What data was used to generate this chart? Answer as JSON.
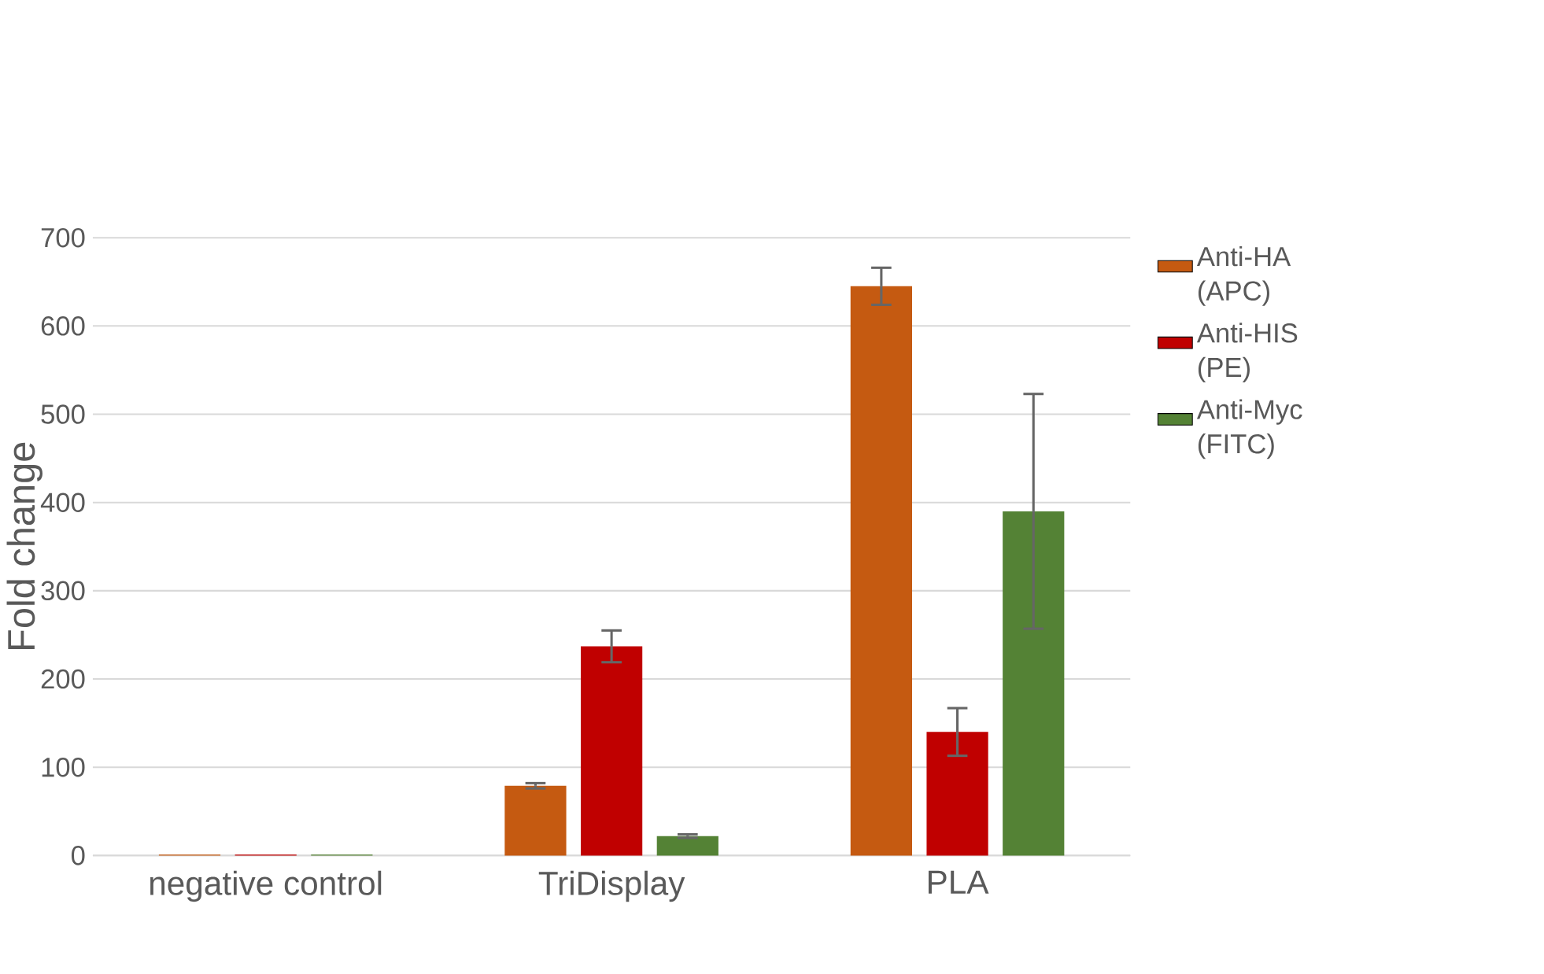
{
  "chart_data": {
    "type": "bar",
    "ylabel": "Fold change",
    "categories": [
      "negative control",
      "TriDisplay",
      "PLA"
    ],
    "series": [
      {
        "name": "Anti-HA (APC)",
        "color": "#c55a11",
        "values": [
          1,
          79,
          645
        ],
        "errors": [
          null,
          3,
          21
        ]
      },
      {
        "name": "Anti-HIS (PE)",
        "color": "#c00000",
        "values": [
          1,
          237,
          140
        ],
        "errors": [
          null,
          18,
          27
        ]
      },
      {
        "name": "Anti-Myc (FITC)",
        "color": "#548235",
        "values": [
          1,
          22,
          390
        ],
        "errors": [
          null,
          2,
          133
        ]
      }
    ],
    "ylim": [
      0,
      700
    ],
    "yticks": [
      0,
      100,
      200,
      300,
      400,
      500,
      600,
      700
    ],
    "grid": "y",
    "legend": "right"
  }
}
